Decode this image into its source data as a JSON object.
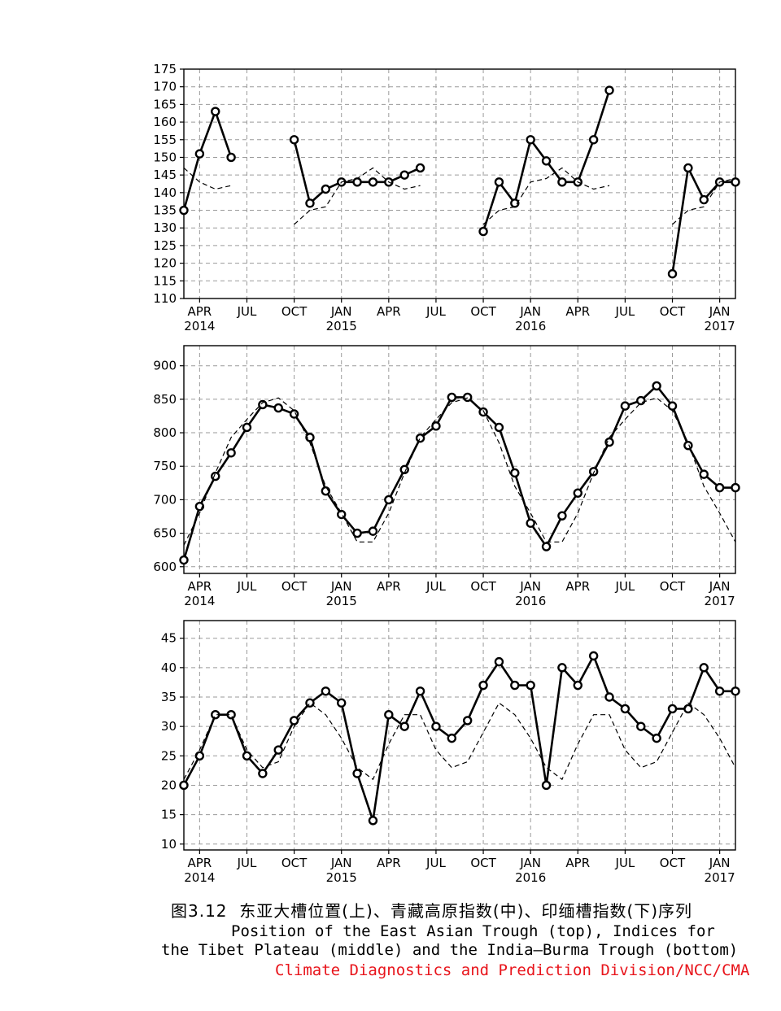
{
  "chart_data": [
    {
      "type": "line",
      "position": "top",
      "ylim": [
        110,
        175
      ],
      "yticks": [
        110,
        115,
        120,
        125,
        130,
        135,
        140,
        145,
        150,
        155,
        160,
        165,
        170,
        175
      ],
      "x_months": [
        "2014-03",
        "2014-04",
        "2014-05",
        "2014-06",
        "2014-07",
        "2014-08",
        "2014-09",
        "2014-10",
        "2014-11",
        "2014-12",
        "2015-01",
        "2015-02",
        "2015-03",
        "2015-04",
        "2015-05",
        "2015-06",
        "2015-07",
        "2015-08",
        "2015-09",
        "2015-10",
        "2015-11",
        "2015-12",
        "2016-01",
        "2016-02",
        "2016-03",
        "2016-04",
        "2016-05",
        "2016-06",
        "2016-07",
        "2016-08",
        "2016-09",
        "2016-10",
        "2016-11",
        "2016-12",
        "2017-01",
        "2017-02"
      ],
      "series": [
        {
          "style": "solid-circles",
          "values": [
            135,
            151,
            163,
            150,
            null,
            null,
            null,
            155,
            137,
            141,
            143,
            143,
            143,
            143,
            145,
            147,
            null,
            null,
            null,
            129,
            143,
            137,
            155,
            149,
            143,
            143,
            155,
            169,
            null,
            null,
            null,
            117,
            147,
            138,
            143,
            143
          ]
        },
        {
          "style": "dashed",
          "values": [
            147,
            143,
            141,
            142,
            null,
            null,
            null,
            131,
            135,
            136,
            143,
            144,
            147,
            143,
            141,
            142,
            null,
            null,
            null,
            131,
            135,
            136,
            143,
            144,
            147,
            143,
            141,
            142,
            null,
            null,
            null,
            131,
            135,
            136,
            143,
            144
          ]
        }
      ]
    },
    {
      "type": "line",
      "position": "middle",
      "ylim": [
        590,
        930
      ],
      "yticks": [
        600,
        650,
        700,
        750,
        800,
        850,
        900
      ],
      "x_months": [
        "2014-03",
        "2014-04",
        "2014-05",
        "2014-06",
        "2014-07",
        "2014-08",
        "2014-09",
        "2014-10",
        "2014-11",
        "2014-12",
        "2015-01",
        "2015-02",
        "2015-03",
        "2015-04",
        "2015-05",
        "2015-06",
        "2015-07",
        "2015-08",
        "2015-09",
        "2015-10",
        "2015-11",
        "2015-12",
        "2016-01",
        "2016-02",
        "2016-03",
        "2016-04",
        "2016-05",
        "2016-06",
        "2016-07",
        "2016-08",
        "2016-09",
        "2016-10",
        "2016-11",
        "2016-12",
        "2017-01",
        "2017-02"
      ],
      "series": [
        {
          "style": "solid-circles",
          "values": [
            610,
            690,
            735,
            770,
            808,
            842,
            837,
            828,
            793,
            713,
            678,
            650,
            653,
            700,
            745,
            792,
            810,
            853,
            853,
            831,
            808,
            740,
            665,
            630,
            676,
            710,
            742,
            786,
            840,
            848,
            870,
            840,
            781,
            738,
            718,
            718
          ]
        },
        {
          "style": "dashed",
          "values": [
            632,
            680,
            740,
            793,
            820,
            845,
            852,
            833,
            785,
            720,
            680,
            637,
            637,
            680,
            740,
            793,
            820,
            845,
            852,
            833,
            785,
            720,
            680,
            637,
            637,
            680,
            740,
            793,
            820,
            845,
            852,
            833,
            785,
            720,
            680,
            637
          ]
        }
      ]
    },
    {
      "type": "line",
      "position": "bottom",
      "ylim": [
        9,
        48
      ],
      "yticks": [
        10,
        15,
        20,
        25,
        30,
        35,
        40,
        45
      ],
      "x_months": [
        "2014-03",
        "2014-04",
        "2014-05",
        "2014-06",
        "2014-07",
        "2014-08",
        "2014-09",
        "2014-10",
        "2014-11",
        "2014-12",
        "2015-01",
        "2015-02",
        "2015-03",
        "2015-04",
        "2015-05",
        "2015-06",
        "2015-07",
        "2015-08",
        "2015-09",
        "2015-10",
        "2015-11",
        "2015-12",
        "2016-01",
        "2016-02",
        "2016-03",
        "2016-04",
        "2016-05",
        "2016-06",
        "2016-07",
        "2016-08",
        "2016-09",
        "2016-10",
        "2016-11",
        "2016-12",
        "2017-01",
        "2017-02"
      ],
      "series": [
        {
          "style": "solid-circles",
          "values": [
            20,
            25,
            32,
            32,
            25,
            22,
            26,
            31,
            34,
            36,
            34,
            22,
            14,
            32,
            30,
            36,
            30,
            28,
            31,
            37,
            41,
            37,
            37,
            20,
            40,
            37,
            42,
            35,
            33,
            30,
            28,
            33,
            33,
            40,
            36,
            36
          ]
        },
        {
          "style": "dashed",
          "values": [
            21,
            26,
            32,
            32,
            26,
            23,
            24,
            30,
            34,
            32,
            28,
            23,
            21,
            27,
            32,
            32,
            26,
            23,
            24,
            29,
            34,
            32,
            28,
            23,
            21,
            27,
            32,
            32,
            26,
            23,
            24,
            29,
            34,
            32,
            28,
            23
          ]
        }
      ]
    }
  ],
  "x_axis": {
    "month_labels": [
      {
        "month": "2014-04",
        "text": "APR",
        "year": "2014"
      },
      {
        "month": "2014-07",
        "text": "JUL",
        "year": ""
      },
      {
        "month": "2014-10",
        "text": "OCT",
        "year": ""
      },
      {
        "month": "2015-01",
        "text": "JAN",
        "year": "2015"
      },
      {
        "month": "2015-04",
        "text": "APR",
        "year": ""
      },
      {
        "month": "2015-07",
        "text": "JUL",
        "year": ""
      },
      {
        "month": "2015-10",
        "text": "OCT",
        "year": ""
      },
      {
        "month": "2016-01",
        "text": "JAN",
        "year": "2016"
      },
      {
        "month": "2016-04",
        "text": "APR",
        "year": ""
      },
      {
        "month": "2016-07",
        "text": "JUL",
        "year": ""
      },
      {
        "month": "2016-10",
        "text": "OCT",
        "year": ""
      },
      {
        "month": "2017-01",
        "text": "JAN",
        "year": "2017"
      }
    ]
  },
  "caption": {
    "zh": "图3.12  东亚大槽位置(上)、青藏高原指数(中)、印缅槽指数(下)序列",
    "en_line1": "Position of the East Asian Trough (top), Indices for",
    "en_line2": "the Tibet Plateau (middle) and the India–Burma Trough (bottom)",
    "credit": "Climate Diagnostics and Prediction Division/NCC/CMA",
    "credit_color": "#e8141b"
  }
}
